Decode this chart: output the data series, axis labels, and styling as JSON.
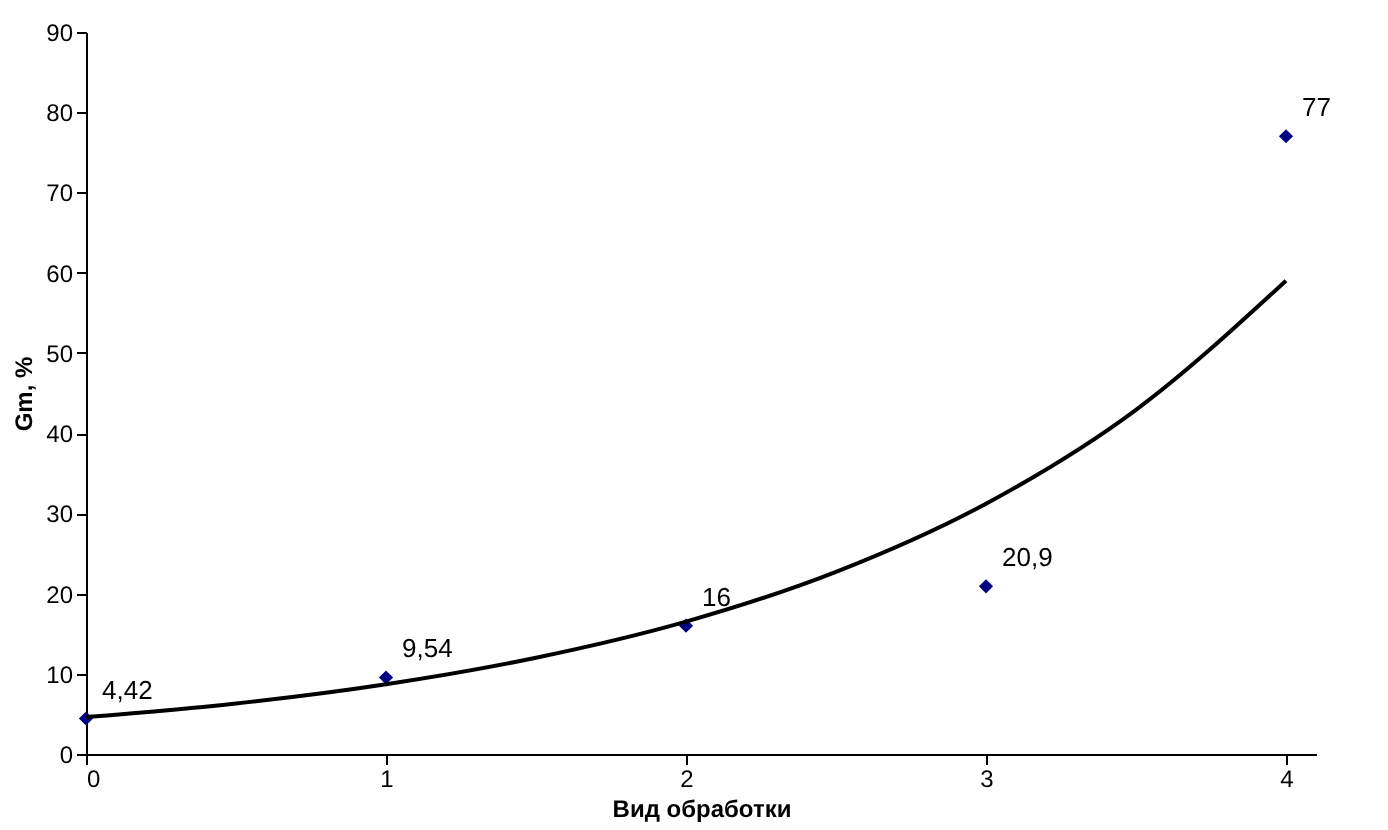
{
  "chart_data": {
    "type": "scatter",
    "xlabel": "Вид обработки",
    "ylabel": "Gm, %",
    "xlim": [
      0,
      4.1
    ],
    "xticks": [
      0,
      1,
      2,
      3,
      4
    ],
    "ylim": [
      0,
      90
    ],
    "yticks": [
      0,
      10,
      20,
      30,
      40,
      50,
      60,
      70,
      80,
      90
    ],
    "grid": false,
    "legend": false,
    "marker": "diamond",
    "series": [
      {
        "type": "scatter",
        "color": "#000080",
        "x": [
          0,
          1,
          2,
          3,
          4
        ],
        "values": [
          4.42,
          9.54,
          16,
          20.9,
          77
        ],
        "value_labels": [
          "4,42",
          "9,54",
          "16",
          "20,9",
          "77"
        ]
      },
      {
        "type": "line",
        "color": "#000000",
        "line_style": "solid",
        "marker": "none",
        "x": [
          0,
          0.5,
          1,
          1.5,
          2,
          2.5,
          3,
          3.5,
          4
        ],
        "values": [
          4.6,
          6.3,
          8.7,
          12,
          16.5,
          22.7,
          31.2,
          42.9,
          59
        ]
      }
    ]
  }
}
